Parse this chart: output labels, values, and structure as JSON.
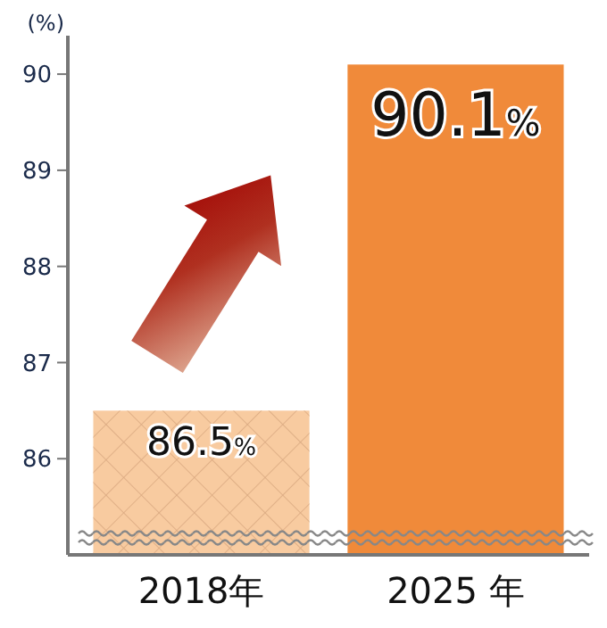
{
  "chart_data": {
    "type": "bar",
    "ylabel": "(%)",
    "categories": [
      "2018年",
      "2025 年"
    ],
    "values": [
      86.5,
      90.1
    ],
    "colors": [
      "#f8cba0",
      "#f08a3a"
    ],
    "value_labels": [
      "86.5%",
      "90.1%"
    ],
    "ylim": [
      85,
      90.4
    ],
    "yticks": [
      86,
      87,
      88,
      89,
      90
    ],
    "grid": false
  }
}
